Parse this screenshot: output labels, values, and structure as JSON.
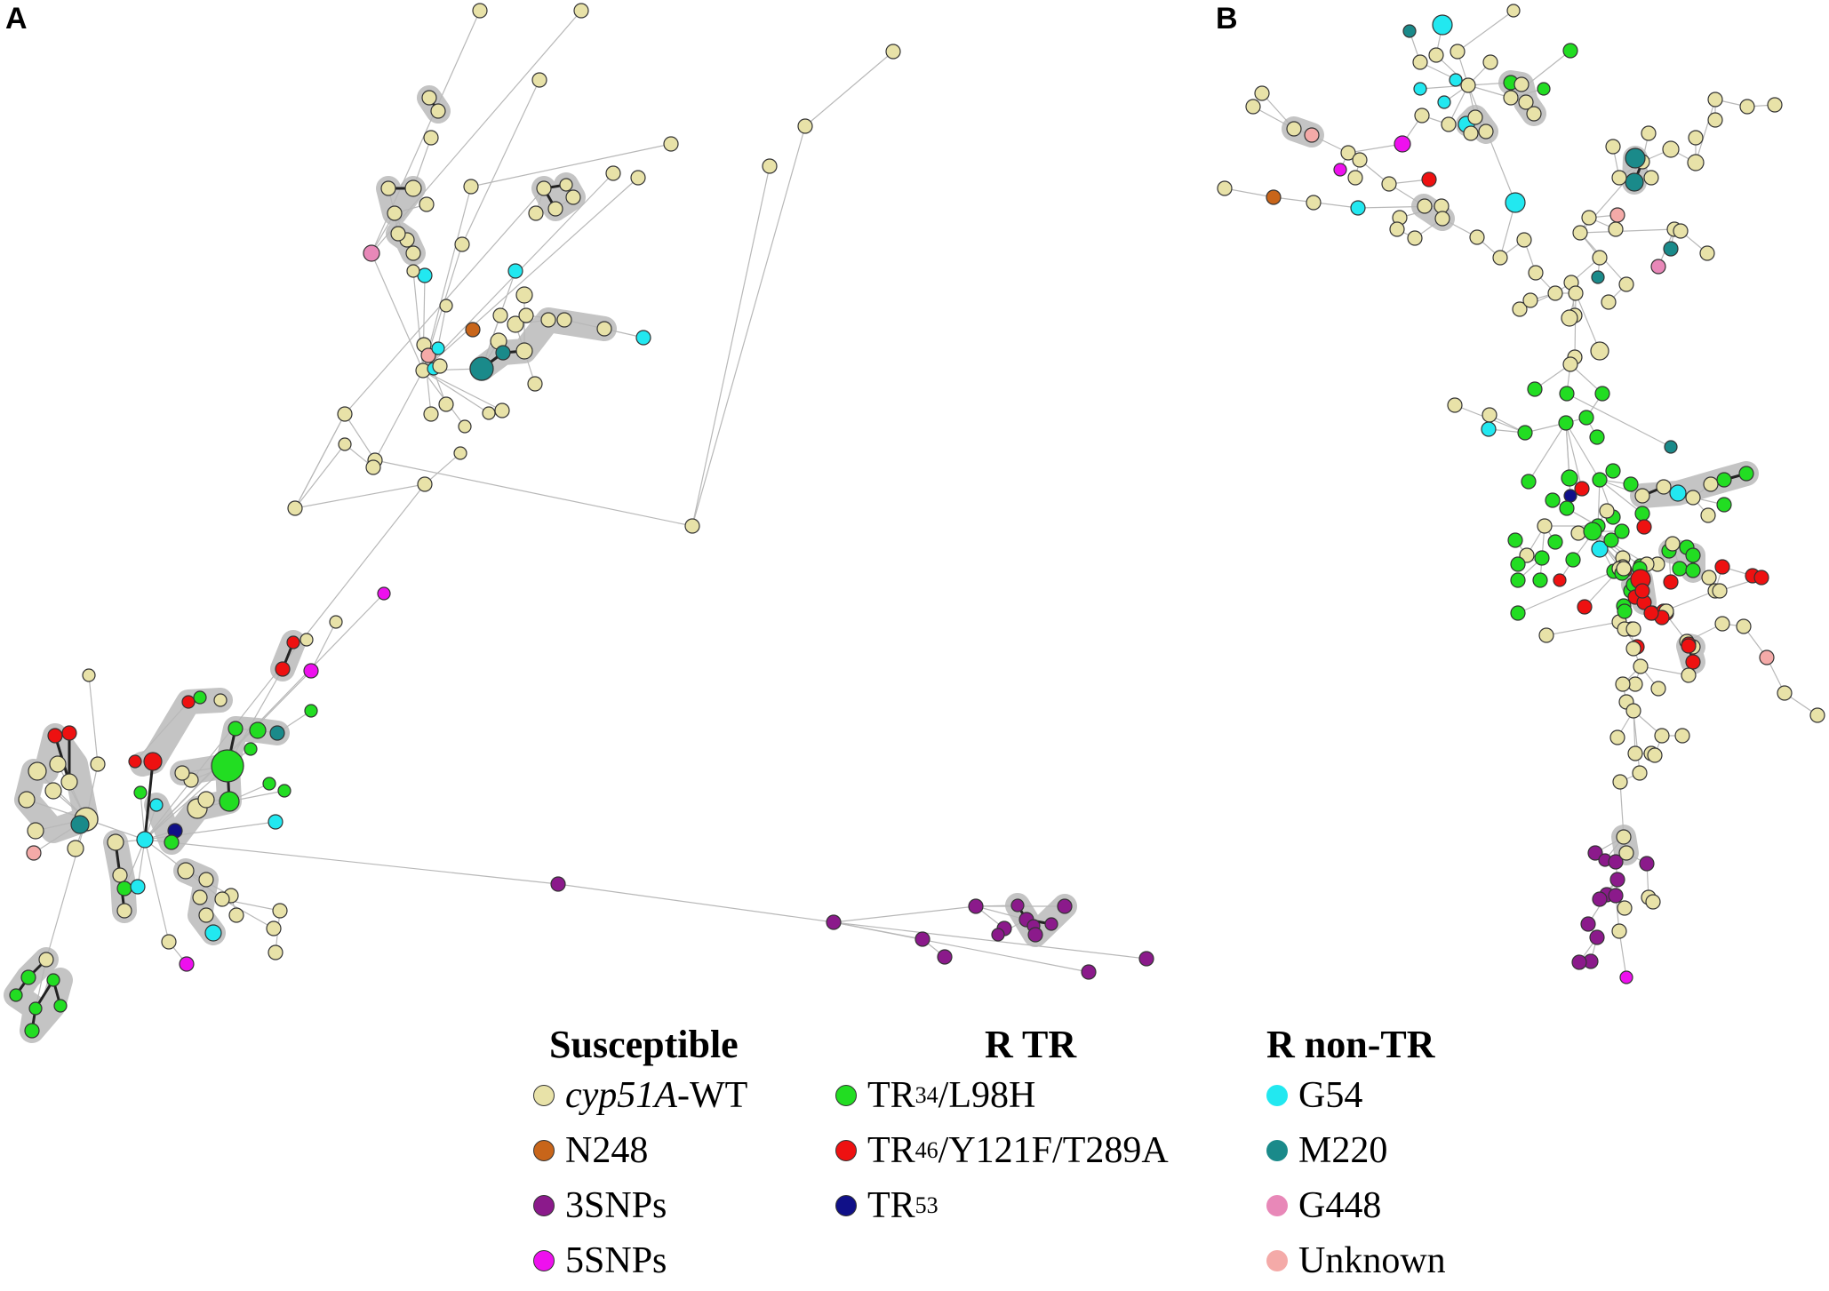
{
  "figure": {
    "panel_a": "A",
    "panel_b": "B"
  },
  "colors": {
    "wt": "#e8e2a8",
    "n248": "#c8651a",
    "snps3": "#8b1a8b",
    "snps5": "#ee10ee",
    "tr34": "#22dd22",
    "tr46": "#ee1111",
    "tr53": "#101088",
    "g54": "#22e8f0",
    "m220": "#1a8a8a",
    "g448": "#e888b8",
    "unknown": "#f4aaa8",
    "cluster_halo": "#c4c4c4",
    "edge": "#b8b8b8"
  },
  "legend": {
    "susceptible": {
      "title": "Susceptible",
      "items": [
        {
          "key": "wt",
          "italic": "cyp51A",
          "label": "-WT"
        },
        {
          "key": "n248",
          "label": "N248"
        },
        {
          "key": "snps3",
          "label": "3SNPs"
        },
        {
          "key": "snps5",
          "label": "5SNPs"
        }
      ]
    },
    "r_tr": {
      "title": "R TR",
      "items": [
        {
          "key": "tr34",
          "label": "TR",
          "sub": "34",
          "suffix": "/L98H"
        },
        {
          "key": "tr46",
          "label": "TR",
          "sub": "46",
          "suffix": "/Y121F/T289A"
        },
        {
          "key": "tr53",
          "label": "TR",
          "sub": "53",
          "suffix": ""
        }
      ]
    },
    "r_non_tr": {
      "title": "R non-TR",
      "items": [
        {
          "key": "g54",
          "label": "G54"
        },
        {
          "key": "m220",
          "label": "M220"
        },
        {
          "key": "g448",
          "label": "G448"
        },
        {
          "key": "unknown",
          "label": "Unknown"
        }
      ]
    }
  }
}
